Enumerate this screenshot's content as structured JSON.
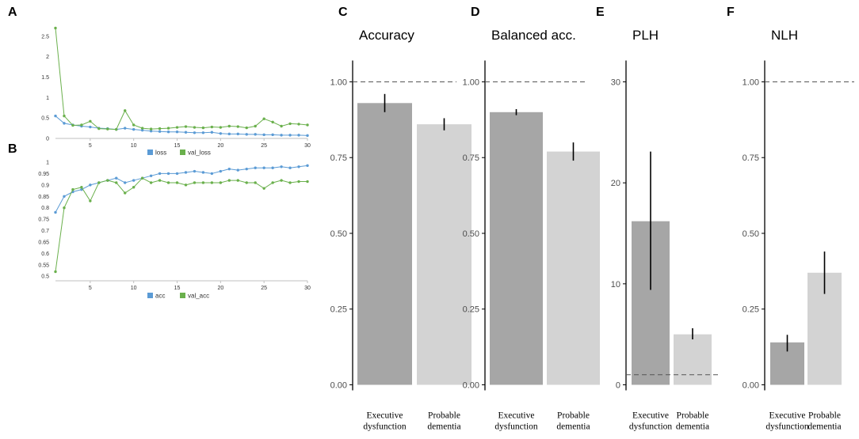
{
  "panel_labels": {
    "A": "A",
    "B": "B",
    "C": "C",
    "D": "D",
    "E": "E",
    "F": "F"
  },
  "colors": {
    "loss": "#5b9bd5",
    "val_loss": "#6ab04c",
    "exec": "#a6a6a6",
    "prob": "#d3d3d3",
    "errorbar": "#000000",
    "refline": "#555555"
  },
  "chart_data": [
    {
      "id": "A",
      "type": "line",
      "x": [
        1,
        2,
        3,
        4,
        5,
        6,
        7,
        8,
        9,
        10,
        11,
        12,
        13,
        14,
        15,
        16,
        17,
        18,
        19,
        20,
        21,
        22,
        23,
        24,
        25,
        26,
        27,
        28,
        29,
        30
      ],
      "series": [
        {
          "name": "loss",
          "values": [
            0.55,
            0.37,
            0.33,
            0.3,
            0.28,
            0.25,
            0.24,
            0.22,
            0.25,
            0.22,
            0.2,
            0.18,
            0.17,
            0.16,
            0.16,
            0.15,
            0.14,
            0.14,
            0.15,
            0.12,
            0.11,
            0.11,
            0.1,
            0.1,
            0.09,
            0.09,
            0.08,
            0.08,
            0.08,
            0.07
          ]
        },
        {
          "name": "val_loss",
          "values": [
            2.7,
            0.55,
            0.32,
            0.33,
            0.42,
            0.24,
            0.23,
            0.22,
            0.68,
            0.33,
            0.25,
            0.23,
            0.24,
            0.25,
            0.27,
            0.29,
            0.27,
            0.26,
            0.28,
            0.27,
            0.3,
            0.29,
            0.26,
            0.3,
            0.48,
            0.4,
            0.3,
            0.36,
            0.35,
            0.33
          ]
        }
      ],
      "ylim": [
        0,
        3
      ],
      "yticks": [
        0,
        0.5,
        1,
        1.5,
        2,
        2.5
      ],
      "ytick_labels": [
        "0",
        "0.5",
        "1",
        "1.5",
        "2",
        "2.5"
      ],
      "xticks": [
        5,
        10,
        15,
        20,
        25,
        30
      ],
      "xtick_labels": [
        "5",
        "10",
        "15",
        "20",
        "25",
        "30"
      ],
      "legend": [
        "loss",
        "val_loss"
      ]
    },
    {
      "id": "B",
      "type": "line",
      "x": [
        1,
        2,
        3,
        4,
        5,
        6,
        7,
        8,
        9,
        10,
        11,
        12,
        13,
        14,
        15,
        16,
        17,
        18,
        19,
        20,
        21,
        22,
        23,
        24,
        25,
        26,
        27,
        28,
        29,
        30
      ],
      "series": [
        {
          "name": "acc",
          "values": [
            0.78,
            0.85,
            0.87,
            0.88,
            0.9,
            0.91,
            0.92,
            0.93,
            0.91,
            0.92,
            0.93,
            0.94,
            0.95,
            0.95,
            0.95,
            0.955,
            0.96,
            0.955,
            0.95,
            0.96,
            0.97,
            0.965,
            0.97,
            0.975,
            0.975,
            0.975,
            0.98,
            0.975,
            0.98,
            0.985
          ]
        },
        {
          "name": "val_acc",
          "values": [
            0.52,
            0.8,
            0.88,
            0.89,
            0.83,
            0.91,
            0.92,
            0.91,
            0.865,
            0.89,
            0.93,
            0.91,
            0.92,
            0.91,
            0.91,
            0.9,
            0.91,
            0.91,
            0.91,
            0.91,
            0.92,
            0.92,
            0.91,
            0.91,
            0.885,
            0.91,
            0.92,
            0.91,
            0.915,
            0.915
          ]
        }
      ],
      "ylim": [
        0.48,
        1.0
      ],
      "yticks": [
        0.5,
        0.55,
        0.6,
        0.65,
        0.7,
        0.75,
        0.8,
        0.85,
        0.9,
        0.95,
        1
      ],
      "ytick_labels": [
        "0.5",
        "0.55",
        "0.6",
        "0.65",
        "0.7",
        "0.75",
        "0.8",
        "0.85",
        "0.9",
        "0.95",
        "1"
      ],
      "xticks": [
        5,
        10,
        15,
        20,
        25,
        30
      ],
      "xtick_labels": [
        "5",
        "10",
        "15",
        "20",
        "25",
        "30"
      ],
      "legend": [
        "acc",
        "val_acc"
      ]
    },
    {
      "id": "C",
      "type": "bar",
      "title": "Accuracy",
      "categories": [
        [
          "Executive",
          "dysfunction"
        ],
        [
          "Probable",
          "dementia"
        ]
      ],
      "values": [
        0.93,
        0.86
      ],
      "err_low": [
        0.9,
        0.84
      ],
      "err_high": [
        0.96,
        0.88
      ],
      "ylim": [
        0,
        1.06
      ],
      "yticks": [
        0,
        0.25,
        0.5,
        0.75,
        1
      ],
      "ytick_labels": [
        "0.00",
        "0.25",
        "0.50",
        "0.75",
        "1.00"
      ],
      "refline": 1.0
    },
    {
      "id": "D",
      "type": "bar",
      "title": "Balanced acc.",
      "categories": [
        [
          "Executive",
          "dysfunction"
        ],
        [
          "Probable",
          "dementia"
        ]
      ],
      "values": [
        0.9,
        0.77
      ],
      "err_low": [
        0.89,
        0.74
      ],
      "err_high": [
        0.91,
        0.8
      ],
      "ylim": [
        0,
        1.06
      ],
      "yticks": [
        0,
        0.25,
        0.5,
        0.75,
        1
      ],
      "ytick_labels": [
        "0.00",
        "0.25",
        "0.50",
        "0.75",
        "1.00"
      ],
      "refline": 1.0
    },
    {
      "id": "E",
      "type": "bar",
      "title": "PLH",
      "categories": [
        [
          "Executive",
          "dysfunction"
        ],
        [
          "Probable",
          "dementia"
        ]
      ],
      "values": [
        16.2,
        5.0
      ],
      "err_low": [
        9.4,
        4.5
      ],
      "err_high": [
        23.1,
        5.6
      ],
      "ylim": [
        0,
        31.8
      ],
      "yticks": [
        0,
        10,
        20,
        30
      ],
      "ytick_labels": [
        "0",
        "10",
        "20",
        "30"
      ],
      "refline": 1.0
    },
    {
      "id": "F",
      "type": "bar",
      "title": "NLH",
      "categories": [
        [
          "Executive",
          "dysfunction"
        ],
        [
          "Probable",
          "dementia"
        ]
      ],
      "values": [
        0.14,
        0.37
      ],
      "err_low": [
        0.11,
        0.3
      ],
      "err_high": [
        0.165,
        0.44
      ],
      "ylim": [
        0,
        1.06
      ],
      "yticks": [
        0,
        0.25,
        0.5,
        0.75,
        1
      ],
      "ytick_labels": [
        "0.00",
        "0.25",
        "0.50",
        "0.75",
        "1.00"
      ],
      "refline": 1.0
    }
  ]
}
